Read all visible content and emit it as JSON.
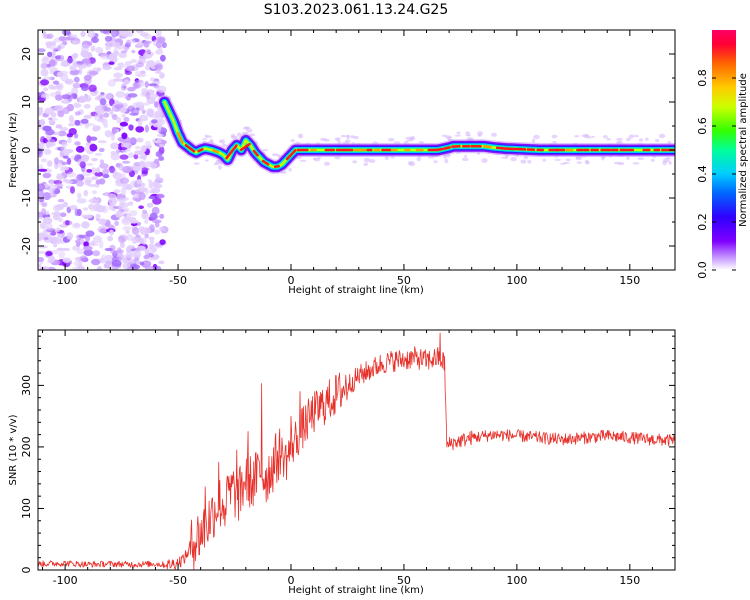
{
  "title": "S103.2023.061.13.24.G25",
  "chart_data": [
    {
      "type": "heatmap",
      "xlabel": "Height of straight line (km)",
      "ylabel": "Frequency (Hz)",
      "xlim": [
        -112,
        170
      ],
      "ylim": [
        -25,
        25
      ],
      "xticks": [
        -100,
        -50,
        0,
        50,
        100,
        150
      ],
      "yticks": [
        20,
        10,
        0,
        -10,
        -20
      ],
      "colorbar": {
        "label": "Normalized spectral amplitude",
        "ticks": [
          0.0,
          0.2,
          0.4,
          0.6,
          0.8
        ],
        "range": [
          0,
          1
        ],
        "colors": [
          "#ffffff",
          "#c79bff",
          "#7f00ff",
          "#3000ff",
          "#0066ff",
          "#00ccff",
          "#00ff99",
          "#33ff00",
          "#ccff00",
          "#ffcc00",
          "#ff6600",
          "#ff0033",
          "#ff0066"
        ]
      },
      "noise_region_x": [
        -112,
        -56
      ],
      "series": [
        {
          "x": [
            -56,
            -54,
            -52,
            -50,
            -48,
            -46,
            -44,
            -42,
            -40,
            -38,
            -35,
            -32,
            -30,
            -28,
            -26,
            -24,
            -22,
            -20,
            -18,
            -16,
            -14,
            -12,
            -10,
            -8,
            -6,
            -4,
            -2,
            0,
            2,
            4,
            6,
            8,
            10,
            15,
            20,
            30,
            40,
            50,
            60,
            65,
            70,
            72,
            75,
            80,
            85,
            90,
            95,
            100,
            110,
            120,
            130,
            140,
            150,
            160,
            170
          ],
          "values": [
            10,
            8,
            6,
            3.5,
            1.5,
            0.8,
            0,
            -0.5,
            0,
            0.3,
            0,
            -0.5,
            -1,
            -2,
            0,
            1,
            0,
            2,
            1,
            -0.5,
            -1.5,
            -2.5,
            -3,
            -3.5,
            -3.5,
            -3,
            -2,
            -1,
            0,
            0,
            0,
            0,
            0,
            0,
            0,
            0,
            0,
            0,
            0,
            0,
            0.5,
            0.8,
            0.8,
            0.8,
            0.8,
            0.5,
            0.3,
            0.2,
            0,
            0,
            0,
            0,
            0,
            0,
            0
          ]
        }
      ]
    },
    {
      "type": "line",
      "xlabel": "Height of straight line (km)",
      "ylabel": "SNR (10 * v/v)",
      "xlim": [
        -112,
        170
      ],
      "ylim": [
        0,
        390
      ],
      "xticks": [
        -100,
        -50,
        0,
        50,
        100,
        150
      ],
      "yticks": [
        0,
        100,
        200,
        300
      ],
      "color": "#e8302a",
      "x": [
        -112,
        -100,
        -90,
        -80,
        -70,
        -60,
        -55,
        -50,
        -47,
        -44,
        -41,
        -38,
        -35,
        -32,
        -29,
        -26,
        -23,
        -20,
        -17,
        -14,
        -11,
        -8,
        -5,
        -2,
        0,
        5,
        10,
        15,
        20,
        25,
        30,
        35,
        40,
        45,
        50,
        55,
        60,
        65,
        67,
        68,
        69,
        70,
        75,
        80,
        90,
        100,
        110,
        120,
        130,
        140,
        150,
        160,
        170
      ],
      "values": [
        10,
        11,
        9,
        10,
        9,
        10,
        8,
        12,
        20,
        40,
        55,
        70,
        90,
        110,
        105,
        130,
        120,
        150,
        140,
        160,
        150,
        170,
        190,
        180,
        200,
        230,
        255,
        270,
        285,
        300,
        315,
        325,
        335,
        340,
        342,
        345,
        340,
        345,
        340,
        335,
        200,
        205,
        210,
        215,
        220,
        218,
        215,
        212,
        215,
        218,
        215,
        212,
        210
      ],
      "noise_bands": [
        {
          "x": [
            -112,
            -55
          ],
          "amplitude": 5
        },
        {
          "x": [
            -55,
            -45
          ],
          "amplitude": 10
        },
        {
          "x": [
            -45,
            -5
          ],
          "amplitude": 45
        },
        {
          "x": [
            -5,
            25
          ],
          "amplitude": 35
        },
        {
          "x": [
            25,
            68
          ],
          "amplitude": 18
        },
        {
          "x": [
            68,
            80
          ],
          "amplitude": 12
        },
        {
          "x": [
            80,
            170
          ],
          "amplitude": 10
        }
      ],
      "spikes": [
        {
          "x": -38,
          "y": 135
        },
        {
          "x": -32,
          "y": 175
        },
        {
          "x": -28,
          "y": 150
        },
        {
          "x": -24,
          "y": 195
        },
        {
          "x": -19,
          "y": 225
        },
        {
          "x": -13,
          "y": 303
        },
        {
          "x": 0,
          "y": 250
        },
        {
          "x": 4,
          "y": 290
        },
        {
          "x": 66,
          "y": 385
        }
      ]
    }
  ]
}
